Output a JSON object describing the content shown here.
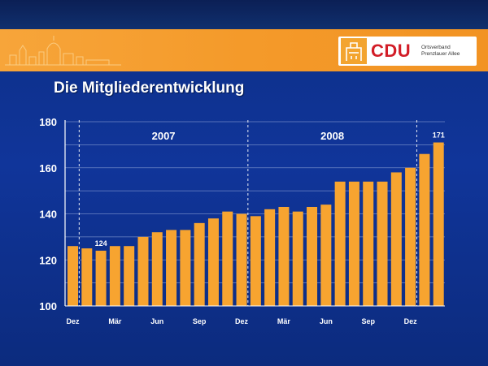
{
  "header": {
    "logo_text": "CDU",
    "logo_subtitle_line1": "Ortsverband",
    "logo_subtitle_line2": "Prenzlauer Allee"
  },
  "colors": {
    "bar": "#f7a430",
    "background": "#10359a",
    "band": "#f49a2a"
  },
  "chart_data": {
    "type": "bar",
    "title": "Die Mitgliederentwicklung",
    "xlabel": "",
    "ylabel": "",
    "ylim": [
      100,
      180
    ],
    "yticks": [
      100,
      120,
      140,
      160,
      180
    ],
    "grid": true,
    "values": [
      126,
      125,
      124,
      126,
      126,
      130,
      132,
      133,
      133,
      136,
      138,
      141,
      140,
      139,
      142,
      143,
      141,
      143,
      144,
      154,
      154,
      154,
      154,
      158,
      160,
      166,
      171
    ],
    "x_tick_labels": [
      {
        "index": 0,
        "label": "Dez"
      },
      {
        "index": 3,
        "label": "Mär"
      },
      {
        "index": 6,
        "label": "Jun"
      },
      {
        "index": 9,
        "label": "Sep"
      },
      {
        "index": 12,
        "label": "Dez"
      },
      {
        "index": 15,
        "label": "Mär"
      },
      {
        "index": 18,
        "label": "Jun"
      },
      {
        "index": 21,
        "label": "Sep"
      },
      {
        "index": 24,
        "label": "Dez"
      }
    ],
    "year_groups": [
      {
        "label": "2007",
        "start": 1,
        "end": 12
      },
      {
        "label": "2008",
        "start": 13,
        "end": 24
      }
    ],
    "data_labels": [
      {
        "index": 2,
        "label": "124"
      },
      {
        "index": 26,
        "label": "171"
      }
    ]
  }
}
